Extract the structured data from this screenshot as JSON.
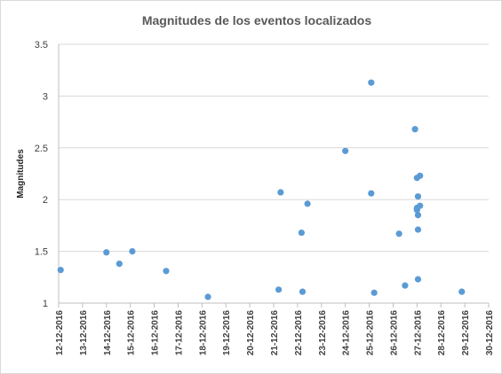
{
  "chart_data": {
    "type": "scatter",
    "title": "Magnitudes de los eventos localizados",
    "xlabel": "",
    "ylabel": "Magnitudes",
    "xlim": [
      "12-12-2016",
      "30-12-2016"
    ],
    "ylim": [
      1,
      3.5
    ],
    "ytick_labels": [
      "1",
      "1.5",
      "2",
      "2.5",
      "3",
      "3.5"
    ],
    "xtick_labels": [
      "12-12-2016",
      "13-12-2016",
      "14-12-2016",
      "15-12-2016",
      "16-12-2016",
      "17-12-2016",
      "18-12-2016",
      "19-12-2016",
      "20-12-2016",
      "21-12-2016",
      "22-12-2016",
      "23-12-2016",
      "24-12-2016",
      "25-12-2016",
      "26-12-2016",
      "27-12-2016",
      "28-12-2016",
      "29-12-2016",
      "30-12-2016"
    ],
    "grid": true,
    "legend": "none",
    "marker_color": "#5b9bd5",
    "series": [
      {
        "x": [
          "12-12-2016 02:00",
          "14-12-2016 00:00",
          "14-12-2016 13:00",
          "15-12-2016 02:00",
          "16-12-2016 12:00",
          "18-12-2016 06:00",
          "21-12-2016 05:00",
          "21-12-2016 07:00",
          "22-12-2016 05:00",
          "22-12-2016 04:00",
          "22-12-2016 10:00",
          "24-12-2016 00:00",
          "25-12-2016 02:00",
          "25-12-2016 02:00",
          "25-12-2016 05:00",
          "26-12-2016 06:00",
          "26-12-2016 12:00",
          "26-12-2016 22:00",
          "27-12-2016 00:00",
          "27-12-2016 03:00",
          "27-12-2016 01:00",
          "27-12-2016 03:00",
          "27-12-2016 00:00",
          "27-12-2016 00:00",
          "27-12-2016 00:00",
          "27-12-2016 01:00",
          "27-12-2016 01:00",
          "27-12-2016 01:00",
          "28-12-2016 21:00"
        ],
        "y": [
          1.32,
          1.49,
          1.38,
          1.5,
          1.31,
          1.06,
          1.13,
          2.07,
          1.11,
          1.68,
          1.96,
          2.47,
          3.13,
          2.06,
          1.1,
          1.67,
          1.17,
          2.68,
          2.21,
          2.23,
          2.03,
          1.94,
          1.92,
          1.91,
          1.9,
          1.85,
          1.71,
          1.23,
          1.11
        ]
      }
    ]
  }
}
